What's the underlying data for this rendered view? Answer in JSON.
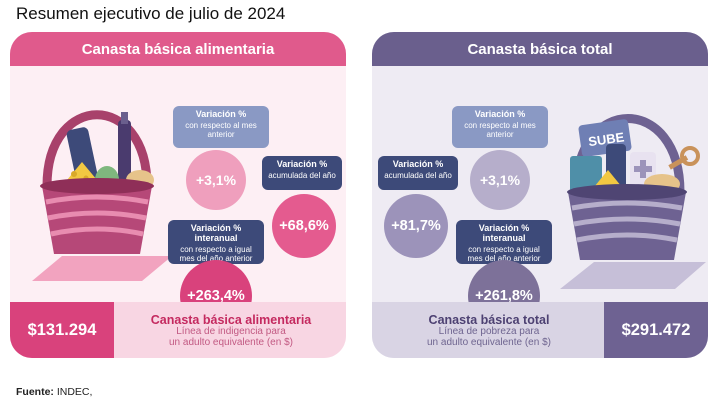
{
  "title": "Resumen ejecutivo de julio de 2024",
  "source": {
    "label": "Fuente:",
    "value": "INDEC,"
  },
  "panels": [
    {
      "heading": "Canasta básica alimentaria",
      "monthly": {
        "label": "Variación %",
        "sub": "con respecto al mes anterior",
        "value": "+3,1%"
      },
      "ytd": {
        "label": "Variación %",
        "sub": "acumulada del año",
        "value": "+68,6%"
      },
      "yoy": {
        "label": "Variación % interanual",
        "sub": "con respecto a igual mes del año anterior",
        "value": "+263,4%"
      },
      "price": "$131.294",
      "name": "Canasta básica alimentaria",
      "line": "Línea de indigencia para",
      "unit": "un adulto equivalente (en $)"
    },
    {
      "heading": "Canasta básica total",
      "monthly": {
        "label": "Variación %",
        "sub": "con respecto al mes anterior",
        "value": "+3,1%"
      },
      "ytd": {
        "label": "Variación %",
        "sub": "acumulada del año",
        "value": "+81,7%"
      },
      "yoy": {
        "label": "Variación % interanual",
        "sub": "con respecto a igual mes del año anterior",
        "value": "+261,8%"
      },
      "price": "$291.472",
      "name": "Canasta básica total",
      "line": "Línea de pobreza para",
      "unit": "un adulto equivalente (en $)",
      "card_text": "SUBE"
    }
  ]
}
